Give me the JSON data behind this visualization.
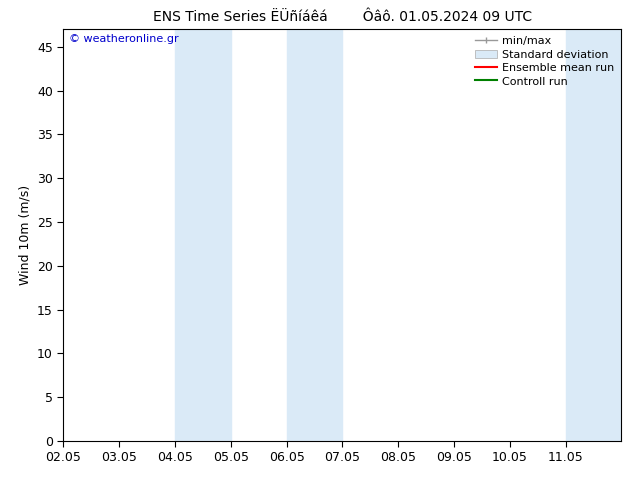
{
  "title_left": "ENS Time Series ËÜñíáêá",
  "title_right": "Ôâô. 01.05.2024 09 UTC",
  "ylabel": "Wind 10m (m/s)",
  "ylim": [
    0,
    47
  ],
  "yticks": [
    0,
    5,
    10,
    15,
    20,
    25,
    30,
    35,
    40,
    45
  ],
  "xtick_labels": [
    "02.05",
    "03.05",
    "04.05",
    "05.05",
    "06.05",
    "07.05",
    "08.05",
    "09.05",
    "10.05",
    "11.05"
  ],
  "xtick_positions": [
    0,
    1,
    2,
    3,
    4,
    5,
    6,
    7,
    8,
    9
  ],
  "shaded_regions": [
    {
      "xmin": 2.0,
      "xmax": 3.0
    },
    {
      "xmin": 4.0,
      "xmax": 5.0
    },
    {
      "xmin": 9.0,
      "xmax": 10.0
    }
  ],
  "shaded_region_color": "#daeaf7",
  "watermark_text": "© weatheronline.gr",
  "watermark_color": "#0000cc",
  "background_color": "#ffffff",
  "spine_color": "#000000",
  "tick_color": "#000000",
  "x_range": [
    0,
    10
  ],
  "title_fontsize": 10,
  "label_fontsize": 9,
  "tick_fontsize": 9,
  "legend_fontsize": 8
}
